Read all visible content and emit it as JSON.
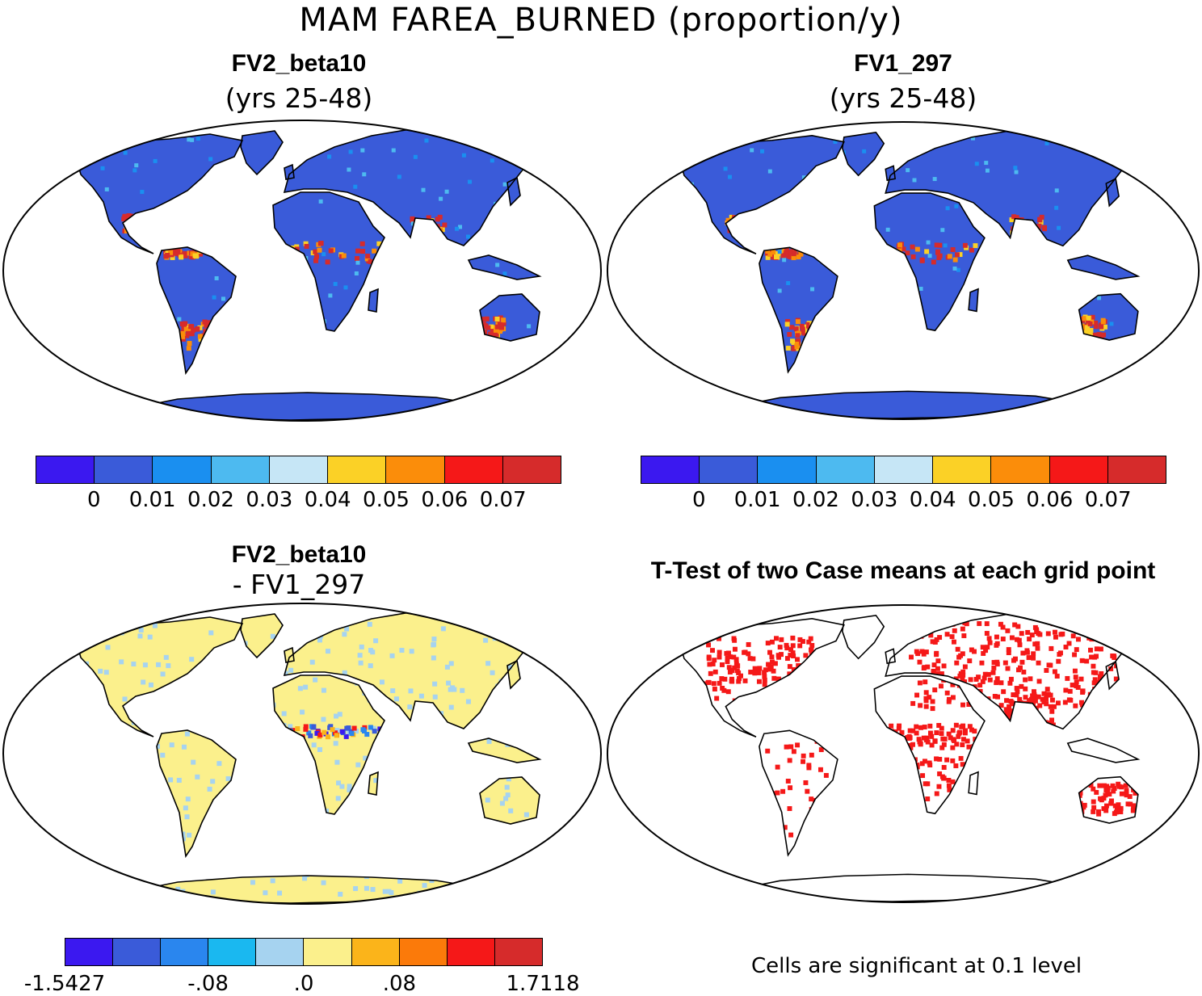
{
  "figure": {
    "title": "MAM FAREA_BURNED (proportion/y)"
  },
  "panels": [
    {
      "id": "a",
      "title": "FV2_beta10",
      "subtitle": "(yrs 25-48)",
      "base_color": "#3a5bd9"
    },
    {
      "id": "b",
      "title": "FV1_297",
      "subtitle": "(yrs 25-48)",
      "base_color": "#3a5bd9"
    },
    {
      "id": "c",
      "title": "FV2_beta10",
      "subtitle": "- FV1_297",
      "base_color": "#fbf08c"
    },
    {
      "id": "d",
      "title": "T-Test of two Case means at each grid point",
      "subtitle": "",
      "base_color": "#ffffff"
    }
  ],
  "colorbars": {
    "mean": {
      "colors": [
        "#3b18f0",
        "#3a5bd9",
        "#1a8ff0",
        "#4dbaf0",
        "#c6e6f6",
        "#fbd126",
        "#fb8d0a",
        "#f51818",
        "#d62b2b"
      ],
      "tick_labels": [
        "0",
        "0.01",
        "0.02",
        "0.03",
        "0.04",
        "0.05",
        "0.06",
        "0.07"
      ]
    },
    "diff": {
      "colors": [
        "#3b18f0",
        "#3a5bd9",
        "#2a86ee",
        "#1ab8f0",
        "#a6d3f0",
        "#fbf08c",
        "#fbb41a",
        "#fb7a0a",
        "#f51818",
        "#d62b2b"
      ],
      "tick_labels": [
        "-1.5427",
        "-.08",
        ".0",
        ".08",
        "1.7118"
      ]
    }
  },
  "significance": {
    "color": "#f51818",
    "note": "Cells are significant at 0.1 level"
  }
}
